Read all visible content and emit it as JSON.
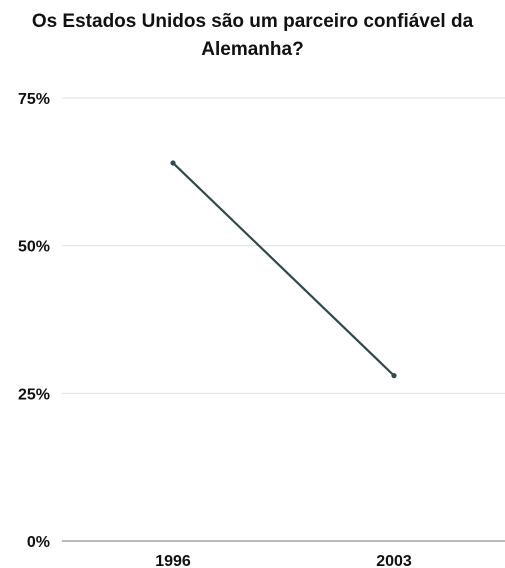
{
  "chart_data": {
    "type": "line",
    "title": "Os Estados Unidos são um parceiro confiável da Alemanha?",
    "xlabel": "",
    "ylabel": "",
    "categories": [
      "1996",
      "2003"
    ],
    "series": [
      {
        "values": [
          64,
          28
        ],
        "color": "#2f4a4a"
      }
    ],
    "ylim": [
      0,
      75
    ],
    "yticks": [
      0,
      25,
      50,
      75
    ],
    "ytick_labels": [
      "0%",
      "25%",
      "50%",
      "75%"
    ],
    "grid": true,
    "legend": "none"
  }
}
